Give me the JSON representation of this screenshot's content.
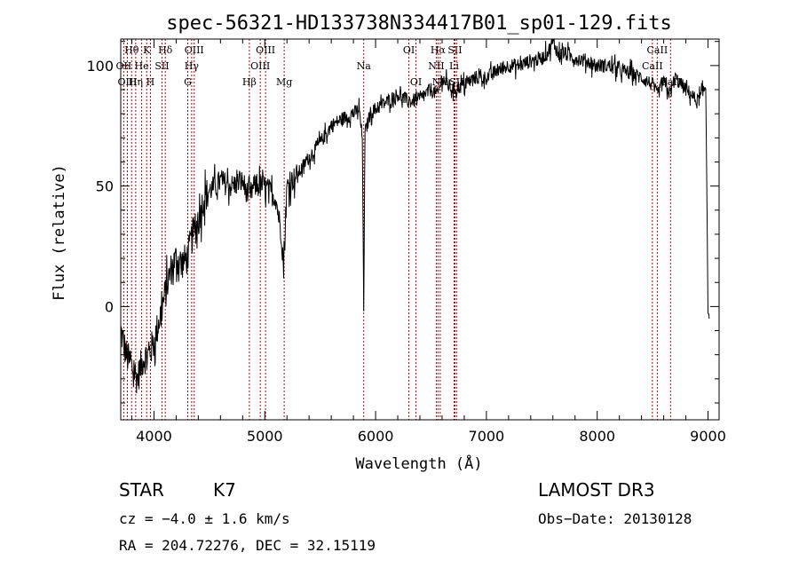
{
  "chart_data": {
    "type": "line",
    "title": "spec-56321-HD133738N334417B01_sp01-129.fits",
    "xlabel": "Wavelength (Å)",
    "ylabel": "Flux (relative)",
    "xlim": [
      3700,
      9100
    ],
    "ylim": [
      -47,
      111
    ],
    "xticks": [
      4000,
      5000,
      6000,
      7000,
      8000,
      9000
    ],
    "yticks": [
      0,
      50,
      100
    ],
    "series": [
      {
        "name": "flux",
        "color": "#000000",
        "x": [
          3700,
          3750,
          3800,
          3850,
          3900,
          3950,
          4000,
          4050,
          4100,
          4150,
          4200,
          4250,
          4300,
          4350,
          4400,
          4450,
          4500,
          4600,
          4700,
          4800,
          4860,
          4900,
          5000,
          5100,
          5150,
          5170,
          5200,
          5300,
          5400,
          5500,
          5600,
          5700,
          5800,
          5850,
          5880,
          5893,
          5905,
          5950,
          6000,
          6100,
          6200,
          6300,
          6400,
          6500,
          6560,
          6600,
          6650,
          6700,
          6800,
          6900,
          7000,
          7100,
          7200,
          7300,
          7400,
          7500,
          7550,
          7600,
          7650,
          7700,
          7800,
          7900,
          8000,
          8100,
          8200,
          8300,
          8400,
          8500,
          8540,
          8600,
          8660,
          8700,
          8800,
          8850,
          8900,
          8950,
          8980,
          9000,
          9010
        ],
        "y": [
          -10,
          -20,
          -25,
          -30,
          -22,
          -20,
          -15,
          -5,
          5,
          15,
          20,
          18,
          20,
          30,
          35,
          45,
          48,
          52,
          50,
          52,
          45,
          50,
          50,
          45,
          30,
          15,
          50,
          55,
          62,
          68,
          75,
          78,
          80,
          82,
          70,
          0,
          72,
          80,
          82,
          85,
          88,
          85,
          86,
          90,
          88,
          95,
          92,
          90,
          92,
          95,
          95,
          98,
          100,
          100,
          102,
          103,
          105,
          110,
          105,
          105,
          103,
          102,
          100,
          100,
          98,
          97,
          95,
          92,
          88,
          93,
          88,
          95,
          90,
          88,
          85,
          88,
          92,
          0,
          -5
        ]
      }
    ],
    "spectral_lines": [
      {
        "label": "Hθ",
        "wl": 3798,
        "row": 0
      },
      {
        "label": "OII",
        "wl": 3727,
        "row": 1
      },
      {
        "label": "OIII",
        "wl": 3760,
        "row": 2
      },
      {
        "label": "K",
        "wl": 3934,
        "row": 0
      },
      {
        "label": "He",
        "wl": 3889,
        "row": 1
      },
      {
        "label": "Hη",
        "wl": 3835,
        "row": 2
      },
      {
        "label": "Hδ",
        "wl": 4102,
        "row": 0
      },
      {
        "label": "SII",
        "wl": 4072,
        "row": 1
      },
      {
        "label": "H",
        "wl": 3968,
        "row": 2
      },
      {
        "label": "OIII",
        "wl": 4363,
        "row": 0
      },
      {
        "label": "Hγ",
        "wl": 4340,
        "row": 1
      },
      {
        "label": "G",
        "wl": 4305,
        "row": 2
      },
      {
        "label": "Hβ",
        "wl": 4861,
        "row": 2
      },
      {
        "label": "OIII",
        "wl": 5007,
        "row": 0
      },
      {
        "label": "OIII",
        "wl": 4959,
        "row": 1
      },
      {
        "label": "Mg",
        "wl": 5175,
        "row": 2
      },
      {
        "label": "Na",
        "wl": 5893,
        "row": 1
      },
      {
        "label": "OI",
        "wl": 6300,
        "row": 0
      },
      {
        "label": "OI",
        "wl": 6364,
        "row": 2
      },
      {
        "label": "Hα",
        "wl": 6563,
        "row": 0
      },
      {
        "label": "NII",
        "wl": 6548,
        "row": 1
      },
      {
        "label": "NII",
        "wl": 6583,
        "row": 2
      },
      {
        "label": "SII",
        "wl": 6716,
        "row": 0
      },
      {
        "label": "Li",
        "wl": 6708,
        "row": 1
      },
      {
        "label": "SII",
        "wl": 6731,
        "row": 2
      },
      {
        "label": "CaII",
        "wl": 8542,
        "row": 0
      },
      {
        "label": "CaII",
        "wl": 8498,
        "row": 1
      },
      {
        "label": "CaII",
        "wl": 8662,
        "row": 2
      }
    ],
    "line_color": "#c00000"
  },
  "info": {
    "class_label": "STAR",
    "subclass": "K7",
    "survey": "LAMOST DR3",
    "cz": "cz = −4.0 ± 1.6 km/s",
    "obs_date": "Obs−Date: 20130128",
    "coords": "RA = 204.72276, DEC =  32.15119"
  }
}
